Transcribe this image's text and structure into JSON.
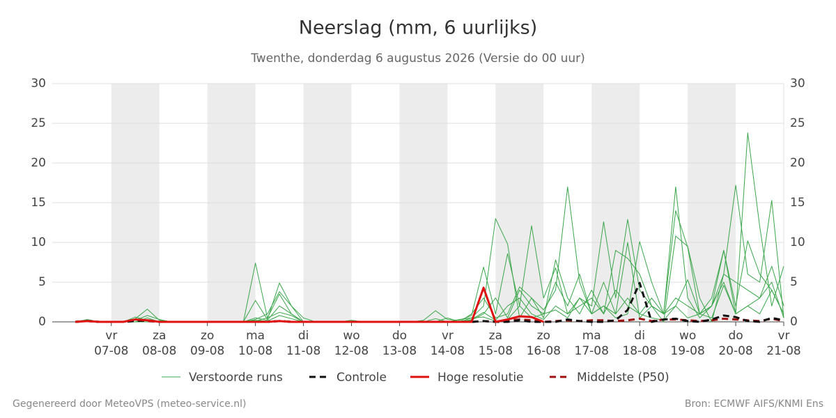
{
  "chart_data": {
    "type": "line",
    "title": "Neerslag (mm, 6 uurlijks)",
    "subtitle": "Twenthe, donderdag  6 augustus 2026 (Versie do 00 uur)",
    "footer_left": "Gegenereerd door MeteoVPS (meteo-service.nl)",
    "footer_right": "Bron: ECMWF AIFS/KNMI Ens",
    "x": [
      6.25,
      6.5,
      6.75,
      7,
      7.25,
      7.5,
      7.75,
      8,
      8.25,
      8.5,
      8.75,
      9,
      9.25,
      9.5,
      9.75,
      10,
      10.25,
      10.5,
      10.75,
      11,
      11.25,
      11.5,
      11.75,
      12,
      12.25,
      12.5,
      12.75,
      13,
      13.25,
      13.5,
      13.75,
      14,
      14.25,
      14.5,
      14.75,
      15,
      15.25,
      15.5,
      15.75,
      16,
      16.25,
      16.5,
      16.75,
      17,
      17.25,
      17.5,
      17.75,
      18,
      18.25,
      18.5,
      18.75,
      19,
      19.25,
      19.5,
      19.75,
      20,
      20.25,
      20.5,
      20.75,
      21
    ],
    "xlim": [
      5.77,
      21
    ],
    "xticks": [
      {
        "value": 7,
        "label": "07-08"
      },
      {
        "value": 8,
        "label": "08-08"
      },
      {
        "value": 9,
        "label": "09-08"
      },
      {
        "value": 10,
        "label": "10-08"
      },
      {
        "value": 11,
        "label": "11-08"
      },
      {
        "value": 12,
        "label": "12-08"
      },
      {
        "value": 13,
        "label": "13-08"
      },
      {
        "value": 14,
        "label": "14-08"
      },
      {
        "value": 15,
        "label": "15-08"
      },
      {
        "value": 16,
        "label": "16-08"
      },
      {
        "value": 17,
        "label": "17-08"
      },
      {
        "value": 18,
        "label": "18-08"
      },
      {
        "value": 19,
        "label": "19-08"
      },
      {
        "value": 20,
        "label": "20-08"
      },
      {
        "value": 21,
        "label": "21-08"
      }
    ],
    "xtick_weekdays": [
      "vr",
      "za",
      "zo",
      "ma",
      "di",
      "wo",
      "do",
      "vr",
      "za",
      "zo",
      "ma",
      "di",
      "wo",
      "do",
      "vr"
    ],
    "ylim": [
      0,
      30
    ],
    "yticks": [
      0,
      5,
      10,
      15,
      20,
      25,
      30
    ],
    "grid": true,
    "ensemble": {
      "name": "Verstoorde runs",
      "color": "#3aa64a",
      "members": [
        [
          0,
          0.3,
          0,
          0,
          0,
          0.4,
          1.6,
          0.2,
          0,
          0,
          0,
          0,
          0,
          0,
          0,
          7.4,
          0.5,
          3.5,
          1,
          0,
          0,
          0,
          0,
          0,
          0,
          0,
          0,
          0,
          0,
          0,
          0.4,
          0,
          0.3,
          0.5,
          2,
          13,
          9.8,
          0.5,
          3,
          1.5,
          4,
          17,
          5,
          1,
          2,
          0.5,
          1,
          10.1,
          5,
          1,
          2,
          0.5,
          1,
          2,
          5,
          1,
          23.8,
          12,
          2,
          7
        ],
        [
          0,
          0.2,
          0,
          0,
          0,
          0,
          0.5,
          0,
          0,
          0,
          0,
          0,
          0,
          0,
          0,
          2.7,
          0.3,
          4.9,
          2,
          0.5,
          0,
          0,
          0,
          0.2,
          0,
          0,
          0,
          0,
          0,
          0.2,
          1.4,
          0.3,
          0.2,
          0.8,
          6.9,
          1,
          8.6,
          2,
          12.1,
          3,
          6.8,
          1,
          3,
          2,
          12.6,
          3,
          12.9,
          4,
          2,
          1,
          17,
          3,
          0.5,
          2,
          6,
          17.2,
          6,
          5,
          15.3,
          0.5
        ],
        [
          0,
          0.1,
          0,
          0,
          0,
          0.6,
          0.2,
          0,
          0,
          0,
          0,
          0,
          0,
          0,
          0,
          0.5,
          0.2,
          2,
          1,
          0,
          0,
          0,
          0,
          0,
          0,
          0,
          0,
          0,
          0,
          0,
          0,
          0.5,
          0,
          1,
          3,
          0.5,
          1,
          4.4,
          3,
          0.5,
          7.8,
          3,
          1,
          4,
          1,
          9,
          8,
          6,
          2,
          1,
          14,
          9.4,
          1,
          3,
          9,
          2,
          10.2,
          6,
          4,
          1
        ],
        [
          0,
          0,
          0,
          0,
          0,
          0,
          0.3,
          0,
          0,
          0,
          0,
          0,
          0,
          0,
          0,
          0.3,
          1,
          3.8,
          2,
          0,
          0,
          0,
          0,
          0,
          0,
          0,
          0,
          0,
          0,
          0,
          0,
          0,
          0,
          0.2,
          1,
          3,
          0.5,
          4,
          2,
          1,
          5,
          2,
          6,
          1,
          5,
          1,
          10,
          0.5,
          2,
          0,
          10.8,
          9.5,
          3,
          0,
          6,
          5,
          4,
          3,
          7,
          2
        ],
        [
          0,
          0,
          0,
          0,
          0,
          0.2,
          0.8,
          0.3,
          0,
          0,
          0,
          0,
          0,
          0,
          0,
          0.1,
          0.5,
          1.2,
          0.8,
          0,
          0,
          0,
          0,
          0,
          0,
          0,
          0,
          0,
          0,
          0,
          0,
          0,
          0,
          0.3,
          1.2,
          0.2,
          2,
          3,
          1,
          0.3,
          2,
          1,
          2,
          3,
          1,
          4,
          2,
          1,
          3,
          1,
          3,
          2,
          1,
          0.5,
          4.6,
          1,
          2,
          1,
          4,
          1
        ],
        [
          0.1,
          0.2,
          0,
          0,
          0,
          0,
          0,
          0,
          0,
          0,
          0,
          0,
          0,
          0,
          0,
          0.2,
          0.1,
          0.8,
          0.4,
          0,
          0,
          0,
          0,
          0,
          0,
          0,
          0,
          0,
          0,
          0,
          0,
          0,
          0,
          0.5,
          0.6,
          0.1,
          0.3,
          2,
          0.5,
          1,
          1.5,
          0.5,
          3,
          1,
          2,
          1,
          3,
          1,
          0.5,
          0.2,
          2,
          5.3,
          1,
          2,
          9,
          1,
          2,
          3,
          5,
          0.5
        ]
      ]
    },
    "series": [
      {
        "name": "Controle",
        "color": "#111111",
        "dash": true,
        "values": [
          0,
          0.1,
          0,
          0,
          0,
          0.1,
          0.2,
          0,
          0,
          0,
          0,
          0,
          0,
          0,
          0,
          0,
          0,
          0.1,
          0,
          0,
          0,
          0,
          0,
          0,
          0,
          0,
          0,
          0,
          0,
          0,
          0,
          0,
          0,
          0,
          0.1,
          0,
          0,
          0.2,
          0,
          0,
          0,
          0.3,
          0.1,
          0,
          0,
          0.2,
          1.5,
          4.9,
          0,
          0.3,
          0.4,
          0.1,
          0,
          0.3,
          0.8,
          0.6,
          0.1,
          0,
          0.5,
          0.2
        ]
      },
      {
        "name": "Hoge resolutie",
        "color": "#e01010",
        "dash": false,
        "values": [
          0,
          0.1,
          0,
          0,
          0,
          0.3,
          0.2,
          0,
          0,
          0,
          0,
          0,
          0,
          0,
          0,
          0,
          0,
          0.1,
          0,
          0,
          0,
          0,
          0,
          0,
          0,
          0,
          0,
          0,
          0,
          0,
          0,
          0,
          0,
          0,
          4.3,
          0,
          0.3,
          0.7,
          0.6,
          0,
          null,
          null,
          null,
          null,
          null,
          null,
          null,
          null,
          null,
          null,
          null,
          null,
          null,
          null,
          null,
          null,
          null,
          null,
          null,
          null
        ]
      },
      {
        "name": "Middelste (P50)",
        "color": "#a01010",
        "dash": true,
        "values": [
          0,
          0.1,
          0,
          0,
          0,
          0.2,
          0.1,
          0,
          0,
          0,
          0,
          0,
          0,
          0,
          0,
          0,
          0,
          0.1,
          0,
          0,
          0,
          0,
          0,
          0,
          0,
          0,
          0,
          0,
          0,
          0,
          0,
          0,
          0,
          0,
          0.1,
          0,
          0.2,
          0.3,
          0.2,
          0,
          0.1,
          0.2,
          0.1,
          0.2,
          0.2,
          0.1,
          0.2,
          0.4,
          0.1,
          0.3,
          0.3,
          0.2,
          0.1,
          0.2,
          0.4,
          0.3,
          0.2,
          0.1,
          0.4,
          0.1
        ]
      }
    ]
  }
}
